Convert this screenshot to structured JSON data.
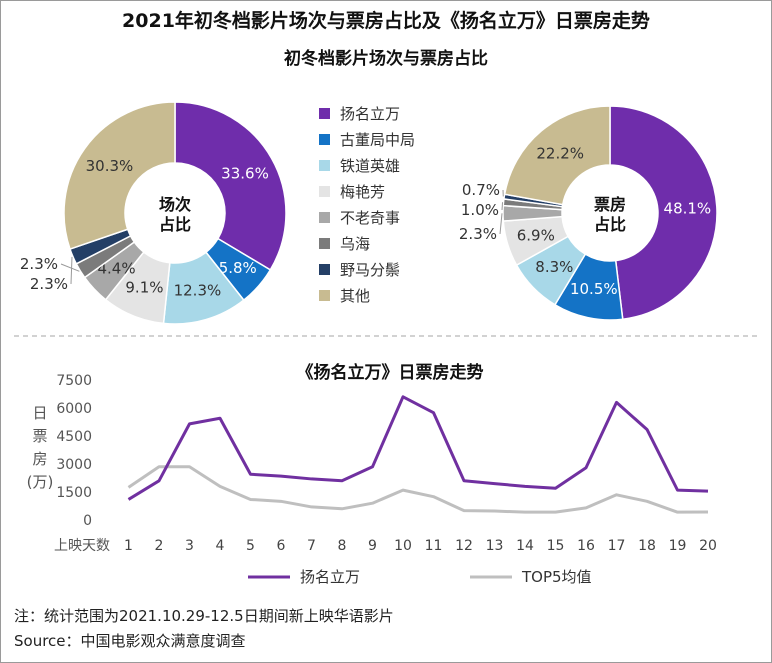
{
  "title": "2021年初冬档影片场次与票房占比及《扬名立万》日票房走势",
  "top_subtitle": "初冬档影片场次与票房占比",
  "colors": {
    "扬名立万": "#6f2dab",
    "古董局中局": "#1473c6",
    "铁道英雄": "#a8d8e8",
    "梅艳芳": "#e4e4e4",
    "不老奇事": "#a8a8a8",
    "乌海": "#7b7b7b",
    "野马分鬃": "#243f66",
    "其他": "#c8bb91",
    "line_main": "#7030a0",
    "line_avg": "#bfbfbf"
  },
  "chart_data": [
    {
      "type": "pie",
      "center_label": [
        "场次",
        "占比"
      ],
      "slices": [
        {
          "name": "扬名立万",
          "value": 33.6,
          "label": "33.6%"
        },
        {
          "name": "古董局中局",
          "value": 5.8,
          "label": "5.8%"
        },
        {
          "name": "铁道英雄",
          "value": 12.3,
          "label": "12.3%"
        },
        {
          "name": "梅艳芳",
          "value": 9.1,
          "label": "9.1%"
        },
        {
          "name": "不老奇事",
          "value": 4.4,
          "label": "4.4%"
        },
        {
          "name": "乌海",
          "value": 2.3,
          "label": "2.3%"
        },
        {
          "name": "野马分鬃",
          "value": 2.3,
          "label": "2.3%"
        },
        {
          "name": "其他",
          "value": 30.3,
          "label": "30.3%"
        }
      ],
      "legend": [
        "扬名立万",
        "古董局中局",
        "铁道英雄",
        "梅艳芳",
        "不老奇事",
        "乌海",
        "野马分鬃",
        "其他"
      ]
    },
    {
      "type": "pie",
      "center_label": [
        "票房",
        "占比"
      ],
      "slices": [
        {
          "name": "扬名立万",
          "value": 48.1,
          "label": "48.1%"
        },
        {
          "name": "古董局中局",
          "value": 10.5,
          "label": "10.5%"
        },
        {
          "name": "铁道英雄",
          "value": 8.3,
          "label": "8.3%"
        },
        {
          "name": "梅艳芳",
          "value": 6.9,
          "label": "6.9%"
        },
        {
          "name": "不老奇事",
          "value": 2.3,
          "label": "2.3%"
        },
        {
          "name": "乌海",
          "value": 1.0,
          "label": "1.0%"
        },
        {
          "name": "野马分鬃",
          "value": 0.7,
          "label": "0.7%"
        },
        {
          "name": "其他",
          "value": 22.2,
          "label": "22.2%"
        }
      ]
    },
    {
      "type": "line",
      "title": "《扬名立万》日票房走势",
      "ylabel": "日票房(万)",
      "xlabel": "上映天数",
      "ylim": [
        0,
        7500
      ],
      "yticks": [
        "0",
        "1500",
        "3000",
        "4500",
        "6000",
        "7500"
      ],
      "x": [
        1,
        2,
        3,
        4,
        5,
        6,
        7,
        8,
        9,
        10,
        11,
        12,
        13,
        14,
        15,
        16,
        17,
        18,
        19,
        20
      ],
      "series": [
        {
          "name": "扬名立万",
          "values": [
            1100,
            2100,
            5150,
            5450,
            2450,
            2350,
            2200,
            2100,
            2850,
            6600,
            5750,
            2100,
            1950,
            1800,
            1700,
            2800,
            6300,
            4850,
            1600,
            1550
          ]
        },
        {
          "name": "TOP5均值",
          "values": [
            1750,
            2850,
            2850,
            1800,
            1100,
            1000,
            700,
            600,
            900,
            1600,
            1250,
            500,
            480,
            420,
            420,
            650,
            1350,
            1000,
            420,
            430
          ]
        }
      ]
    }
  ],
  "footnote": "注：统计范围为2021.10.29-12.5日期间新上映华语影片",
  "source": "Source：中国电影观众满意度调查"
}
